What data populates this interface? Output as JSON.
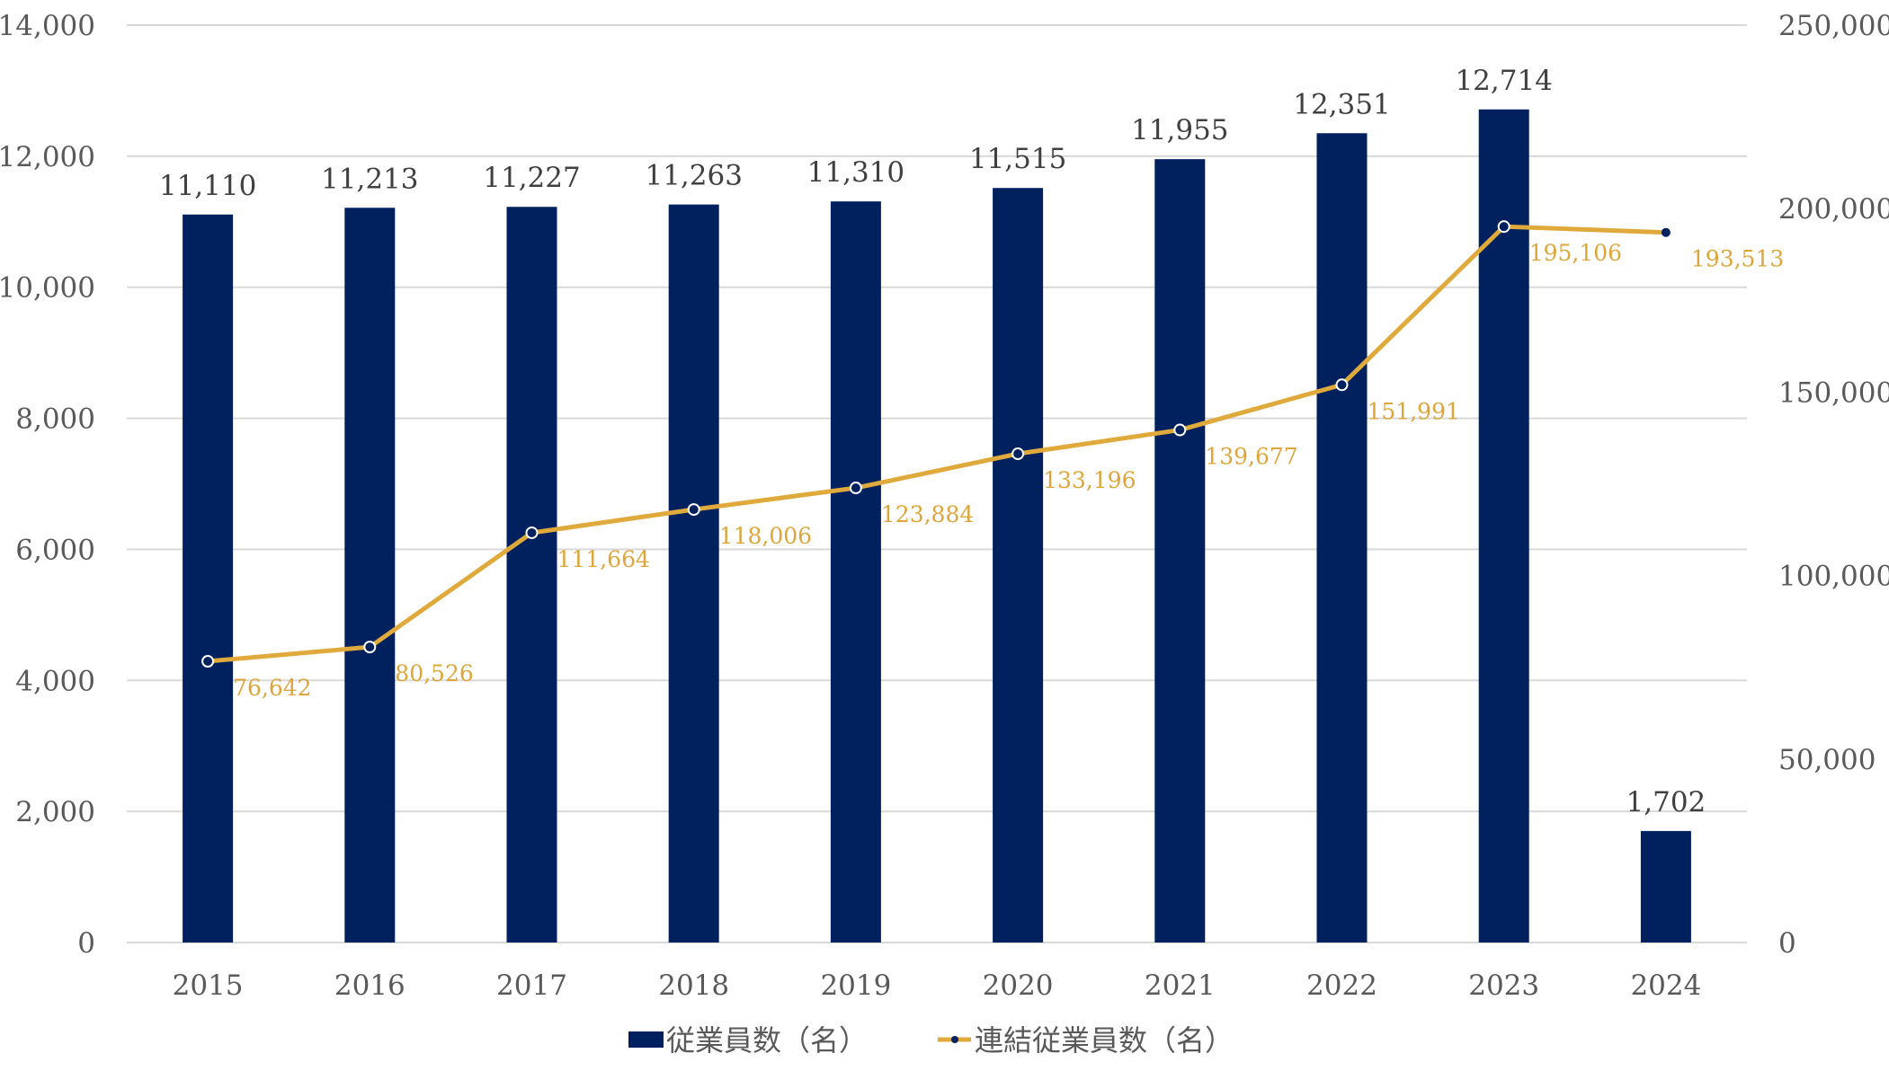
{
  "chart_data": {
    "type": "bar",
    "title": "",
    "xlabel": "",
    "ylabel": "",
    "categories": [
      "2015",
      "2016",
      "2017",
      "2018",
      "2019",
      "2020",
      "2021",
      "2022",
      "2023",
      "2024"
    ],
    "series": [
      {
        "name": "従業員数（名）",
        "type": "bar",
        "axis": "left",
        "color": "#00215E",
        "values": [
          11110,
          11213,
          11227,
          11263,
          11310,
          11515,
          11955,
          12351,
          12714,
          1702
        ],
        "labels": [
          "11,110",
          "11,213",
          "11,227",
          "11,263",
          "11,310",
          "11,515",
          "11,955",
          "12,351",
          "12,714",
          "1,702"
        ]
      },
      {
        "name": "連結従業員数（名）",
        "type": "line",
        "axis": "right",
        "color": "#E0A93B",
        "marker_color": "#00215E",
        "values": [
          76642,
          80526,
          111664,
          118006,
          123884,
          133196,
          139677,
          151991,
          195106,
          193513
        ],
        "labels": [
          "76,642",
          "80,526",
          "111,664",
          "118,006",
          "123,884",
          "133,196",
          "139,677",
          "151,991",
          "195,106",
          "193,513"
        ]
      }
    ],
    "y_left": {
      "ylim": [
        0,
        14000
      ],
      "ticks": [
        0,
        2000,
        4000,
        6000,
        8000,
        10000,
        12000,
        14000
      ],
      "tick_labels": [
        "0",
        "2,000",
        "4,000",
        "6,000",
        "8,000",
        "10,000",
        "12,000",
        "14,000"
      ]
    },
    "y_right": {
      "ylim": [
        0,
        250000
      ],
      "ticks": [
        0,
        50000,
        100000,
        150000,
        200000,
        250000
      ],
      "tick_labels": [
        "0",
        "50,000",
        "100,000",
        "150,000",
        "200,000",
        "250,000"
      ]
    },
    "grid": true,
    "grid_color": "#D9D9D9",
    "legend_position": "bottom"
  }
}
